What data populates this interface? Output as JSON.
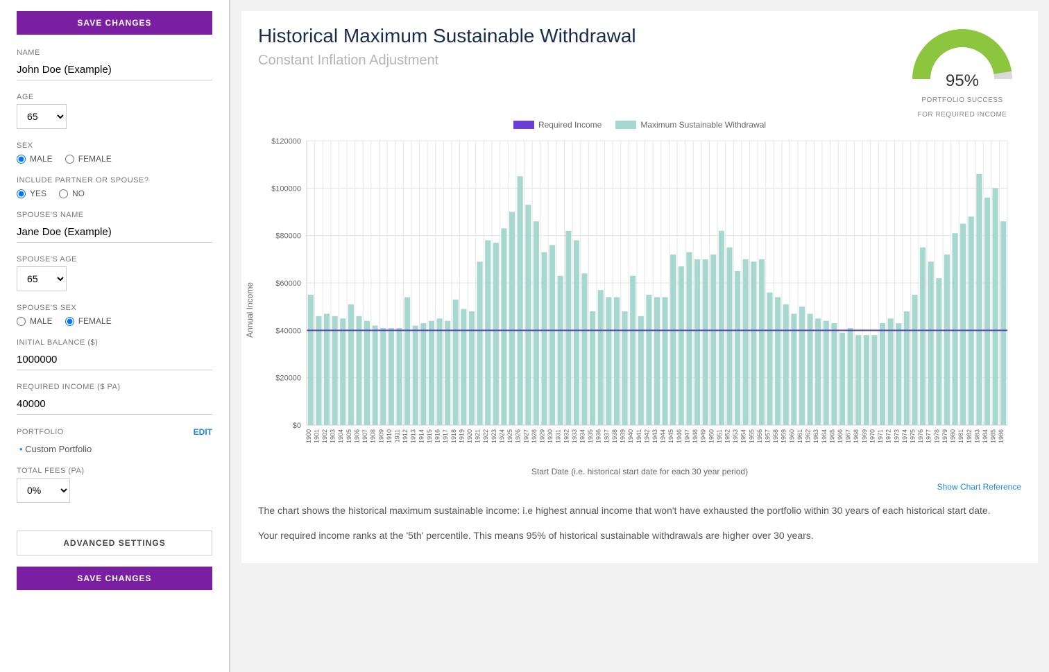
{
  "sidebar": {
    "save_changes": "SAVE CHANGES",
    "name_label": "NAME",
    "name_value": "John Doe (Example)",
    "age_label": "AGE",
    "age_value": "65",
    "sex_label": "SEX",
    "sex_male": "MALE",
    "sex_female": "FEMALE",
    "sex_selected": "male",
    "include_label": "INCLUDE PARTNER OR SPOUSE?",
    "include_yes": "YES",
    "include_no": "NO",
    "include_selected": "yes",
    "spouse_name_label": "SPOUSE'S NAME",
    "spouse_name_value": "Jane Doe (Example)",
    "spouse_age_label": "SPOUSE'S AGE",
    "spouse_age_value": "65",
    "spouse_sex_label": "SPOUSE'S SEX",
    "spouse_sex_selected": "female",
    "initial_balance_label": "INITIAL BALANCE ($)",
    "initial_balance_value": "1000000",
    "required_income_label": "REQUIRED INCOME ($ PA)",
    "required_income_value": "40000",
    "portfolio_label": "PORTFOLIO",
    "edit_label": "EDIT",
    "portfolio_item": "Custom Portfolio",
    "total_fees_label": "TOTAL FEES (PA)",
    "total_fees_value": "0%",
    "advanced_settings": "ADVANCED SETTINGS"
  },
  "main": {
    "title": "Historical Maximum Sustainable Withdrawal",
    "subtitle": "Constant Inflation Adjustment",
    "gauge": {
      "pct_text": "95%",
      "pct_value": 95,
      "line1": "PORTFOLIO SUCCESS",
      "line2": "FOR REQUIRED INCOME",
      "fill_color": "#8cc63f",
      "track_color": "#d9d9d9"
    },
    "legend": {
      "required": "Required Income",
      "required_color": "#6a3fd6",
      "max": "Maximum Sustainable Withdrawal",
      "max_color": "#a7d8d0"
    },
    "chart": {
      "type": "bar",
      "ylabel": "Annual Income",
      "xlabel": "Start Date (i.e. historical start date for each 30 year period)",
      "ylim": [
        0,
        120000
      ],
      "ytick_step": 20000,
      "yticks": [
        "$0",
        "$20000",
        "$40000",
        "$60000",
        "$80000",
        "$100000",
        "$120000"
      ],
      "reference_line_value": 40000,
      "reference_line_color": "#5a3fc7",
      "bar_color": "#a7d8d0",
      "grid_color": "#e5e5e5",
      "background": "#ffffff",
      "years": [
        1900,
        1901,
        1902,
        1903,
        1904,
        1905,
        1906,
        1907,
        1908,
        1909,
        1910,
        1911,
        1912,
        1913,
        1914,
        1915,
        1916,
        1917,
        1918,
        1919,
        1920,
        1921,
        1922,
        1923,
        1924,
        1925,
        1926,
        1927,
        1928,
        1929,
        1930,
        1931,
        1932,
        1933,
        1934,
        1935,
        1936,
        1937,
        1938,
        1939,
        1940,
        1941,
        1942,
        1943,
        1944,
        1945,
        1946,
        1947,
        1948,
        1949,
        1950,
        1951,
        1952,
        1953,
        1954,
        1955,
        1956,
        1957,
        1958,
        1959,
        1960,
        1961,
        1962,
        1963,
        1964,
        1965,
        1966,
        1967,
        1968,
        1969,
        1970,
        1971,
        1972,
        1973,
        1974,
        1975,
        1976,
        1977,
        1978,
        1979,
        1980,
        1981,
        1982,
        1983,
        1984,
        1985,
        1986
      ],
      "values": [
        55000,
        46000,
        47000,
        46000,
        45000,
        51000,
        46000,
        44000,
        42000,
        41000,
        41000,
        41000,
        54000,
        42000,
        43000,
        44000,
        45000,
        44000,
        53000,
        49000,
        48000,
        69000,
        78000,
        77000,
        83000,
        90000,
        105000,
        93000,
        86000,
        73000,
        76000,
        63000,
        82000,
        78000,
        64000,
        48000,
        57000,
        54000,
        54000,
        48000,
        63000,
        46000,
        55000,
        54000,
        54000,
        72000,
        67000,
        73000,
        70000,
        70000,
        72000,
        82000,
        75000,
        65000,
        70000,
        69000,
        70000,
        56000,
        54000,
        51000,
        47000,
        50000,
        47000,
        45000,
        44000,
        43000,
        39000,
        41000,
        38000,
        38000,
        38000,
        43000,
        45000,
        43000,
        48000,
        55000,
        75000,
        69000,
        62000,
        72000,
        81000,
        85000,
        88000,
        106000,
        96000,
        100000,
        86000
      ]
    },
    "show_ref": "Show Chart Reference",
    "desc1": "The chart shows the historical maximum sustainable income: i.e highest annual income that won't have exhausted the portfolio within 30 years of each historical start date.",
    "desc2": "Your required income ranks at the '5th' percentile. This means 95% of historical sustainable withdrawals are higher over 30 years."
  }
}
